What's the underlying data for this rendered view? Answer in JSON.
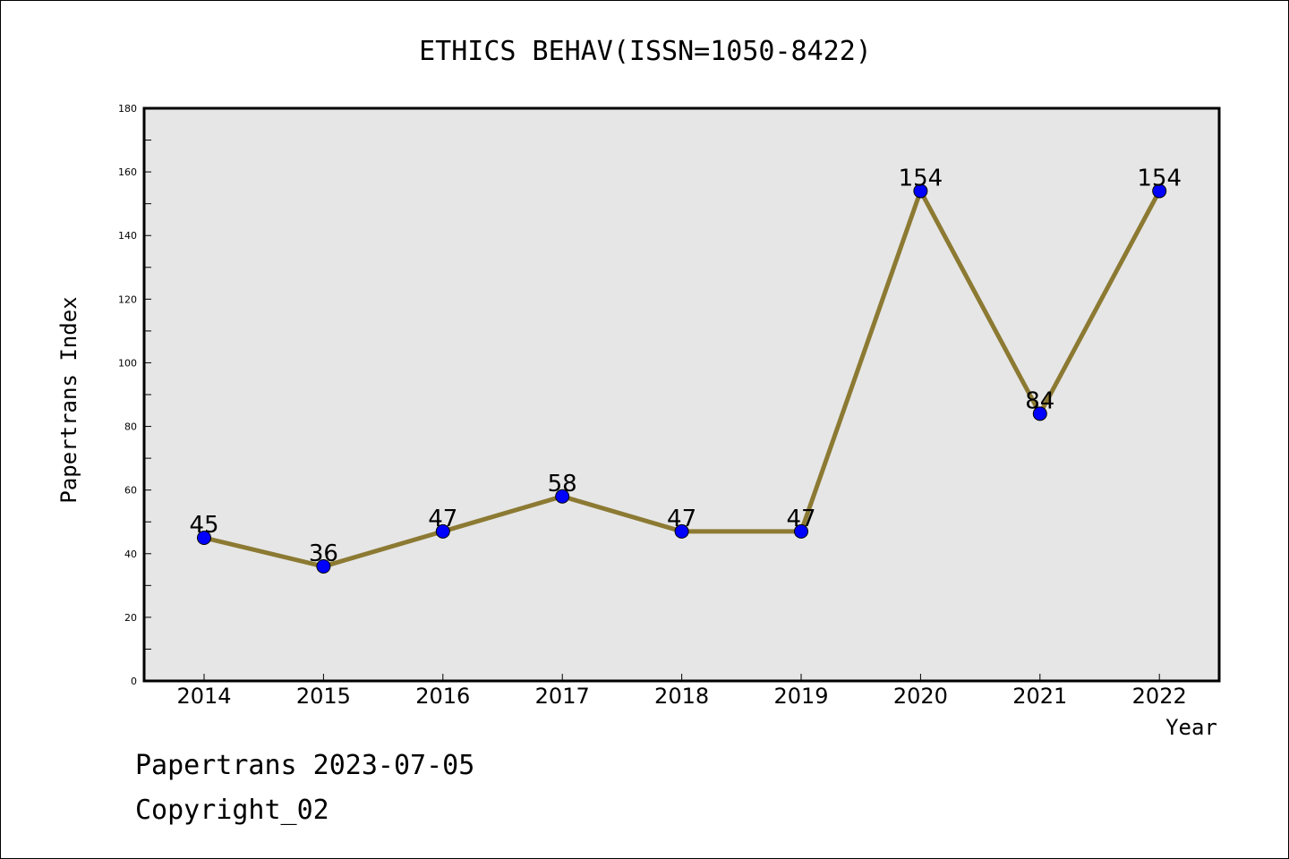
{
  "chart_data": {
    "type": "line",
    "title": "ETHICS BEHAV(ISSN=1050-8422)",
    "xlabel": "Year",
    "ylabel": "Papertrans Index",
    "categories": [
      "2014",
      "2015",
      "2016",
      "2017",
      "2018",
      "2019",
      "2020",
      "2021",
      "2022"
    ],
    "series": [
      {
        "values": [
          45,
          36,
          47,
          58,
          47,
          47,
          154,
          84,
          154
        ]
      }
    ],
    "ylim": [
      0,
      180
    ],
    "yticks": [
      "0",
      "20",
      "40",
      "60",
      "80",
      "100",
      "120",
      "140",
      "160",
      "180"
    ],
    "grid": false,
    "plot_background": "#e6e6e6",
    "line_color": "#8c7a33",
    "marker_color": "#0000ff"
  },
  "footer": {
    "line1": "Papertrans 2023-07-05",
    "line2": "Copyright_02"
  }
}
